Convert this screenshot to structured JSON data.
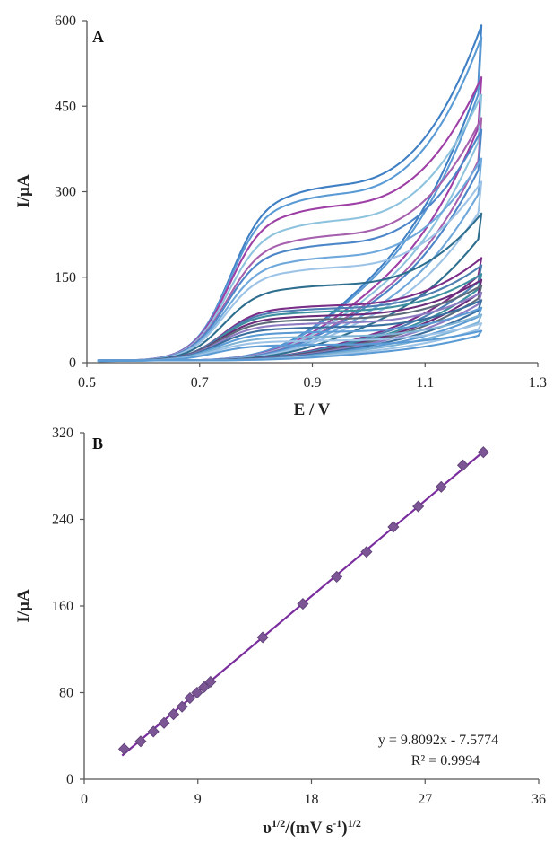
{
  "chart_data": [
    {
      "type": "line",
      "panel_label": "A",
      "xlabel": "E / V",
      "ylabel": "I/µA",
      "xlim": [
        0.5,
        1.3
      ],
      "ylim": [
        0,
        600
      ],
      "xticks": [
        "0.5",
        "0.7",
        "0.9",
        "1.1",
        "1.3"
      ],
      "yticks": [
        "0",
        "150",
        "300",
        "450",
        "600"
      ],
      "grid": false,
      "legend": "none",
      "series": [
        {
          "color": "#3F7FC4",
          "peak": 300,
          "end": 580,
          "base": 0
        },
        {
          "color": "#5B9BD5",
          "peak": 285,
          "end": 560,
          "base": 0
        },
        {
          "color": "#9E3FA6",
          "peak": 265,
          "end": 490,
          "base": 0
        },
        {
          "color": "#8EC3DE",
          "peak": 240,
          "end": 460,
          "base": 0
        },
        {
          "color": "#A661AE",
          "peak": 215,
          "end": 420,
          "base": 0
        },
        {
          "color": "#4C86C8",
          "peak": 200,
          "end": 400,
          "base": 0
        },
        {
          "color": "#6FA8DC",
          "peak": 178,
          "end": 350,
          "base": 0
        },
        {
          "color": "#9DC3E6",
          "peak": 160,
          "end": 310,
          "base": 0
        },
        {
          "color": "#2E6E8E",
          "peak": 130,
          "end": 255,
          "base": 0
        },
        {
          "color": "#7A2E88",
          "peak": 95,
          "end": 178,
          "base": 0
        },
        {
          "color": "#4D7FB3",
          "peak": 90,
          "end": 165,
          "base": 0
        },
        {
          "color": "#3E8FA0",
          "peak": 85,
          "end": 150,
          "base": 0
        },
        {
          "color": "#6A2C7A",
          "peak": 78,
          "end": 140,
          "base": 0
        },
        {
          "color": "#5E6B7A",
          "peak": 72,
          "end": 130,
          "base": 0
        },
        {
          "color": "#8E7CC3",
          "peak": 65,
          "end": 118,
          "base": 0
        },
        {
          "color": "#3A6E9E",
          "peak": 58,
          "end": 105,
          "base": 0
        },
        {
          "color": "#5B9BD5",
          "peak": 50,
          "end": 92,
          "base": 0
        },
        {
          "color": "#7FB3D5",
          "peak": 42,
          "end": 80,
          "base": 0
        },
        {
          "color": "#9DC3E6",
          "peak": 35,
          "end": 65,
          "base": 0
        },
        {
          "color": "#5B9BD5",
          "peak": 28,
          "end": 52,
          "base": 0
        }
      ]
    },
    {
      "type": "scatter",
      "panel_label": "B",
      "xlabel": "υ1/2/(mV s-1)1/2",
      "ylabel": "I/µA",
      "xlim": [
        0,
        36
      ],
      "ylim": [
        0,
        320
      ],
      "xticks": [
        "0",
        "9",
        "18",
        "27",
        "36"
      ],
      "yticks": [
        "0",
        "80",
        "160",
        "240",
        "320"
      ],
      "grid": false,
      "legend": "none",
      "marker_color": "#7B5594",
      "line_color": "#7A2E9E",
      "x": [
        3.16,
        4.47,
        5.48,
        6.32,
        7.07,
        7.75,
        8.37,
        8.94,
        9.49,
        10.0,
        14.14,
        17.32,
        20.0,
        22.36,
        24.49,
        26.46,
        28.28,
        30.0,
        31.62
      ],
      "y": [
        28,
        35,
        44,
        52,
        60,
        67,
        75,
        80,
        85,
        90,
        131,
        162,
        187,
        210,
        233,
        252,
        270,
        290,
        302
      ],
      "trendline": {
        "slope": 9.8092,
        "intercept": -7.5774,
        "x_range": [
          3.0,
          31.62
        ]
      },
      "equation": "y = 9.8092x - 7.5774",
      "r_squared": "R² = 0.9994"
    }
  ]
}
